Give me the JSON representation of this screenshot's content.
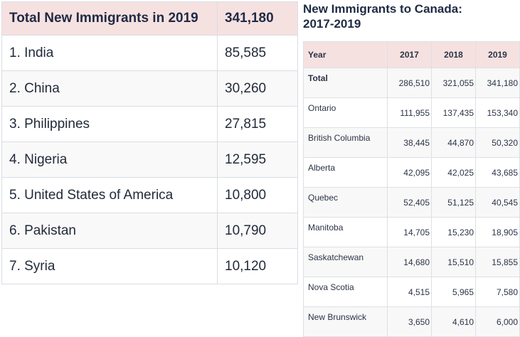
{
  "left": {
    "header": {
      "label": "Total New Immigrants in 2019",
      "value": "341,180"
    },
    "rows": [
      {
        "label": "1. India",
        "value": "85,585"
      },
      {
        "label": "2. China",
        "value": "30,260"
      },
      {
        "label": "3. Philippines",
        "value": "27,815"
      },
      {
        "label": "4. Nigeria",
        "value": "12,595"
      },
      {
        "label": "5. United States of America",
        "value": "10,800"
      },
      {
        "label": "6. Pakistan",
        "value": "10,790"
      },
      {
        "label": "7. Syria",
        "value": "10,120"
      }
    ]
  },
  "right": {
    "title_line1": "New Immigrants to Canada:",
    "title_line2": "2017-2019",
    "header": {
      "col0": "Year",
      "col1": "2017",
      "col2": "2018",
      "col3": "2019"
    },
    "rows": [
      {
        "name": "Total",
        "v2017": "286,510",
        "v2018": "321,055",
        "v2019": "341,180"
      },
      {
        "name": "Ontario",
        "v2017": "111,955",
        "v2018": "137,435",
        "v2019": "153,340"
      },
      {
        "name": "British Columbia",
        "v2017": "38,445",
        "v2018": "44,870",
        "v2019": "50,320"
      },
      {
        "name": "Alberta",
        "v2017": "42,095",
        "v2018": "42,025",
        "v2019": "43,685"
      },
      {
        "name": "Quebec",
        "v2017": "52,405",
        "v2018": "51,125",
        "v2019": "40,545"
      },
      {
        "name": "Manitoba",
        "v2017": "14,705",
        "v2018": "15,230",
        "v2019": "18,905"
      },
      {
        "name": "Saskatchewan",
        "v2017": "14,680",
        "v2018": "15,510",
        "v2019": "15,855"
      },
      {
        "name": "Nova Scotia",
        "v2017": "4,515",
        "v2018": "5,965",
        "v2019": "7,580"
      },
      {
        "name": "New Brunswick",
        "v2017": "3,650",
        "v2018": "4,610",
        "v2019": "6,000"
      }
    ]
  }
}
